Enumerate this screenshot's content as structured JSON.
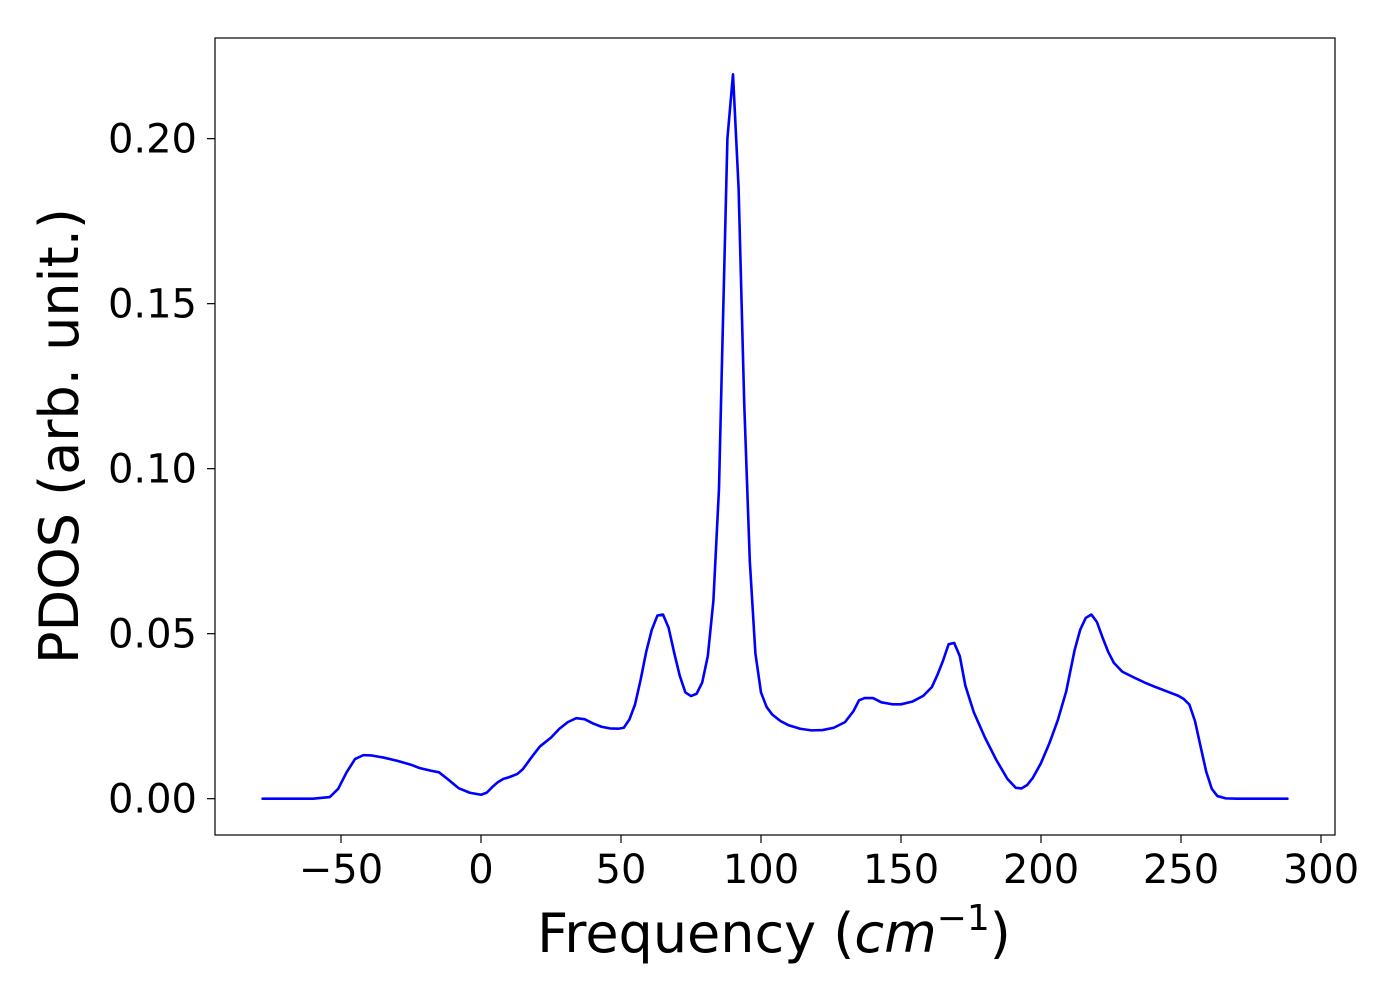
{
  "chart_data": {
    "type": "line",
    "xlabel_text": "Frequency (",
    "xlabel_math_base": "cm",
    "xlabel_math_exp": "−1",
    "xlabel_close": ")",
    "ylabel": "PDOS (arb. unit.)",
    "xlim": [
      -95,
      305
    ],
    "ylim": [
      -0.011,
      0.2305
    ],
    "xticks": [
      -50,
      0,
      50,
      100,
      150,
      200,
      250,
      300
    ],
    "xtick_labels": [
      "−50",
      "0",
      "50",
      "100",
      "150",
      "200",
      "250",
      "300"
    ],
    "yticks": [
      0.0,
      0.05,
      0.1,
      0.15,
      0.2
    ],
    "ytick_labels": [
      "0.00",
      "0.05",
      "0.10",
      "0.15",
      "0.20"
    ],
    "grid": false,
    "series": [
      {
        "color": "#0000ff",
        "x": [
          -78,
          -70,
          -60,
          -54,
          -51,
          -48,
          -45,
          -42,
          -39,
          -35,
          -30,
          -25,
          -22,
          -18,
          -15,
          -12,
          -8,
          -4,
          0,
          2,
          4,
          6,
          8,
          10,
          13,
          15,
          18,
          21,
          25,
          28,
          31,
          34,
          37,
          40,
          43,
          46,
          49,
          51,
          53,
          55,
          57,
          59,
          61,
          63,
          65,
          67,
          69,
          71,
          73,
          75,
          77,
          79,
          81,
          83,
          85,
          86,
          88,
          90,
          92,
          94,
          96,
          98,
          100,
          102,
          104,
          107,
          110,
          114,
          118,
          122,
          126,
          130,
          133,
          135,
          137,
          140,
          143,
          147,
          150,
          154,
          158,
          161,
          163,
          165,
          167,
          169,
          171,
          173,
          176,
          180,
          184,
          188,
          191,
          193,
          195,
          197,
          200,
          203,
          206,
          209,
          212,
          214,
          216,
          218,
          220,
          222,
          224,
          226,
          229,
          233,
          237,
          241,
          245,
          249,
          251,
          253,
          255,
          257,
          259,
          261,
          263,
          266,
          270,
          280,
          288
        ],
        "y": [
          0.0,
          0.0,
          0.0,
          0.0005,
          0.003,
          0.008,
          0.012,
          0.0132,
          0.0131,
          0.0125,
          0.0115,
          0.0103,
          0.0093,
          0.0085,
          0.008,
          0.006,
          0.0032,
          0.0018,
          0.0012,
          0.0018,
          0.0035,
          0.005,
          0.006,
          0.0065,
          0.0075,
          0.009,
          0.0125,
          0.0158,
          0.0185,
          0.0212,
          0.0232,
          0.0244,
          0.0241,
          0.0228,
          0.0218,
          0.0213,
          0.0212,
          0.0215,
          0.024,
          0.0285,
          0.036,
          0.0445,
          0.0512,
          0.0555,
          0.0558,
          0.0518,
          0.0442,
          0.0372,
          0.0322,
          0.0311,
          0.0318,
          0.0352,
          0.0432,
          0.06,
          0.094,
          0.13,
          0.2,
          0.2195,
          0.185,
          0.12,
          0.072,
          0.044,
          0.0322,
          0.0278,
          0.0255,
          0.0235,
          0.0222,
          0.0212,
          0.0207,
          0.0208,
          0.0215,
          0.0232,
          0.0265,
          0.0298,
          0.0305,
          0.0305,
          0.0292,
          0.0286,
          0.0286,
          0.0294,
          0.0312,
          0.0338,
          0.0375,
          0.0418,
          0.0468,
          0.0472,
          0.0432,
          0.0342,
          0.0262,
          0.0185,
          0.0118,
          0.006,
          0.0033,
          0.0031,
          0.0041,
          0.0062,
          0.0108,
          0.0168,
          0.0238,
          0.0325,
          0.045,
          0.0512,
          0.0548,
          0.0558,
          0.0535,
          0.0488,
          0.0445,
          0.0412,
          0.0385,
          0.0368,
          0.0352,
          0.0338,
          0.0325,
          0.0312,
          0.0302,
          0.0285,
          0.0235,
          0.0158,
          0.0082,
          0.003,
          0.0008,
          0.0001,
          0.0,
          0.0,
          0.0
        ]
      }
    ]
  }
}
